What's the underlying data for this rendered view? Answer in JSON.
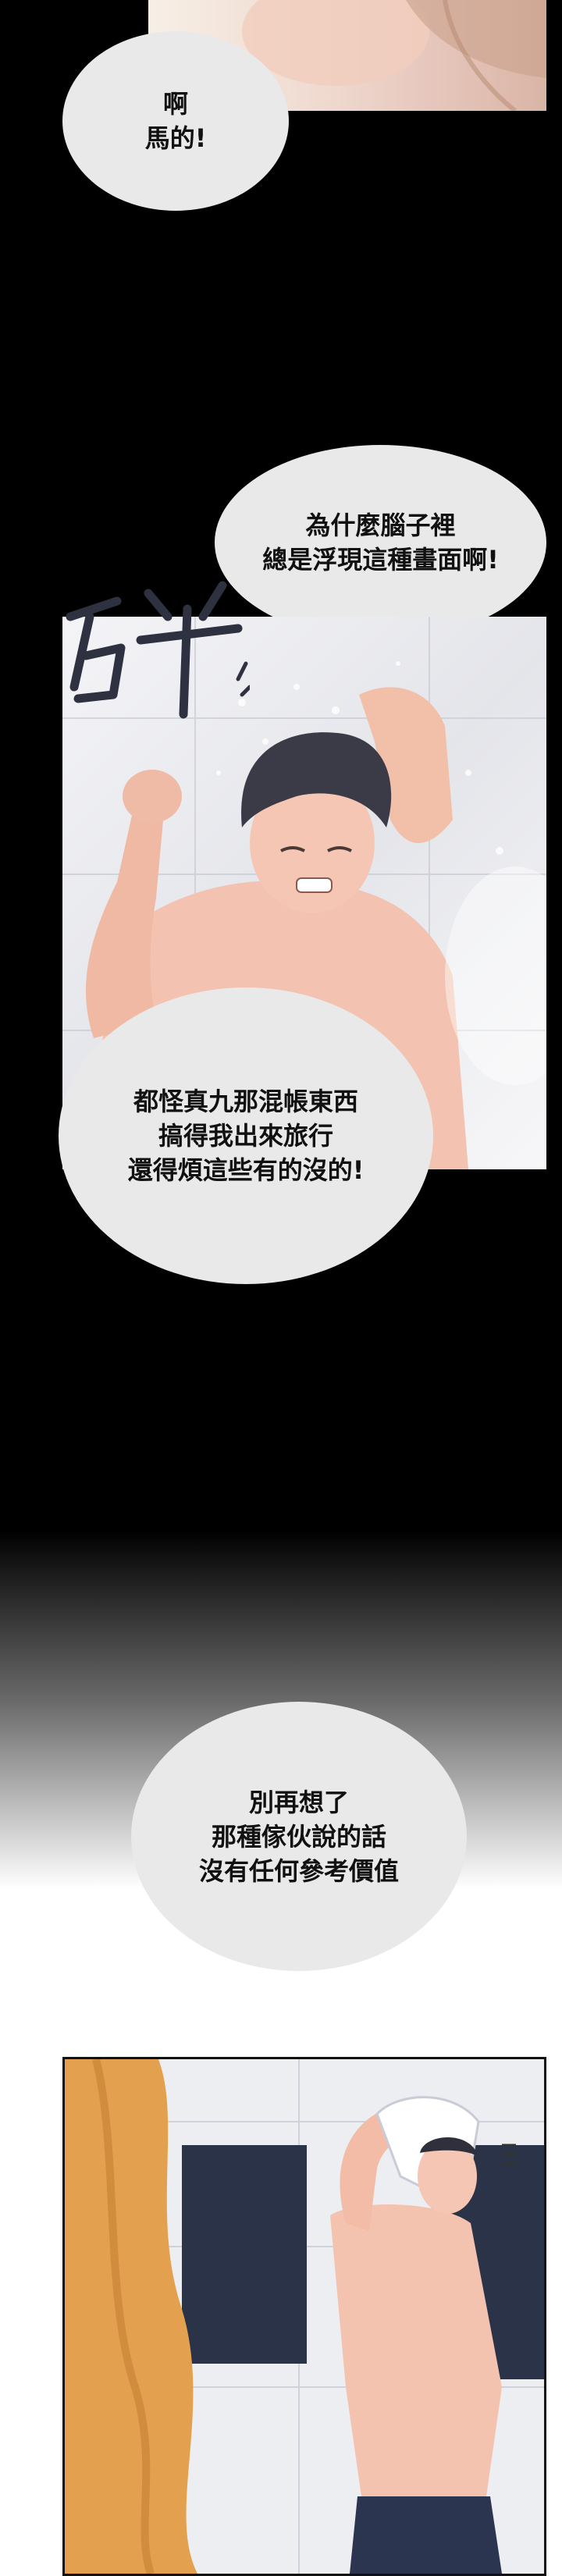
{
  "bubbles": {
    "b1": "啊\n馬的!",
    "b2": "為什麼腦子裡\n總是浮現這種畫面啊!",
    "b3": "都怪真九那混帳東西\n搞得我出來旅行\n還得煩這些有的沒的!",
    "b4": "別再想了\n那種傢伙說的話\n沒有任何參考價值"
  },
  "sfx": {
    "crash": "砰"
  },
  "colors": {
    "bubble": "#e9e9e9",
    "background_top": "#000000",
    "background_bottom": "#ffffff",
    "skin": "#f3c2b0",
    "hair": "#3b3b48"
  }
}
